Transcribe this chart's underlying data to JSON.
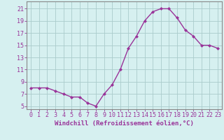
{
  "x": [
    0,
    1,
    2,
    3,
    4,
    5,
    6,
    7,
    8,
    9,
    10,
    11,
    12,
    13,
    14,
    15,
    16,
    17,
    18,
    19,
    20,
    21,
    22,
    23
  ],
  "y": [
    8,
    8,
    8,
    7.5,
    7,
    6.5,
    6.5,
    5.5,
    5,
    7,
    8.5,
    11,
    14.5,
    16.5,
    19,
    20.5,
    21,
    21,
    19.5,
    17.5,
    16.5,
    15,
    15,
    14.5
  ],
  "line_color": "#993399",
  "marker": "D",
  "marker_size": 2,
  "bg_color": "#d6f0f0",
  "grid_color": "#aacccc",
  "xlabel": "Windchill (Refroidissement éolien,°C)",
  "xlabel_fontsize": 6.5,
  "ylabel_ticks": [
    5,
    7,
    9,
    11,
    13,
    15,
    17,
    19,
    21
  ],
  "xtick_labels": [
    "0",
    "1",
    "2",
    "3",
    "4",
    "5",
    "6",
    "7",
    "8",
    "9",
    "10",
    "11",
    "12",
    "13",
    "14",
    "15",
    "16",
    "17",
    "18",
    "19",
    "20",
    "21",
    "22",
    "23"
  ],
  "ylim": [
    4.5,
    22.2
  ],
  "xlim": [
    -0.5,
    23.5
  ],
  "tick_color": "#993399",
  "tick_fontsize": 6,
  "spine_color": "#888888",
  "linewidth": 1.0
}
